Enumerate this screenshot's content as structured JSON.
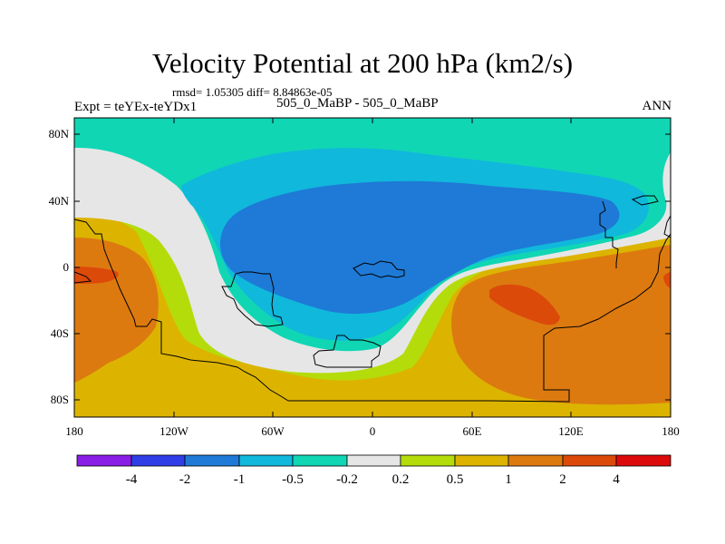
{
  "header": {
    "title": "Velocity Potential at 200 hPa (km2/s)",
    "stats": "rmsd= 1.05305 diff= 8.84863e-05",
    "experiment": "Expt = teYEx-teYDx1",
    "case": "505_0_MaBP - 505_0_MaBP",
    "season": "ANN"
  },
  "axes": {
    "y_ticks": [
      "80N",
      "40N",
      "0",
      "40S",
      "80S"
    ],
    "x_ticks": [
      "180",
      "120W",
      "60W",
      "0",
      "60E",
      "120E",
      "180"
    ]
  },
  "colorbar": {
    "labels": [
      "-4",
      "-2",
      "-1",
      "-0.5",
      "-0.2",
      "0.2",
      "0.5",
      "1",
      "2",
      "4"
    ],
    "colors": [
      "#8a1ee6",
      "#2f3ee6",
      "#1e7ad6",
      "#10b8dc",
      "#10d6b4",
      "#e6e6e6",
      "#b4dc0a",
      "#dcb400",
      "#dc7a10",
      "#dc4a0a",
      "#dc0a0a"
    ]
  },
  "palette": {
    "dark_blue": "#1e7ad6",
    "light_blue": "#10b8dc",
    "teal": "#10d6b4",
    "grey": "#e6e6e6",
    "yellow_green": "#b4dc0a",
    "gold": "#dcb400",
    "orange": "#dc7a10",
    "red_orange": "#dc4a0a"
  }
}
